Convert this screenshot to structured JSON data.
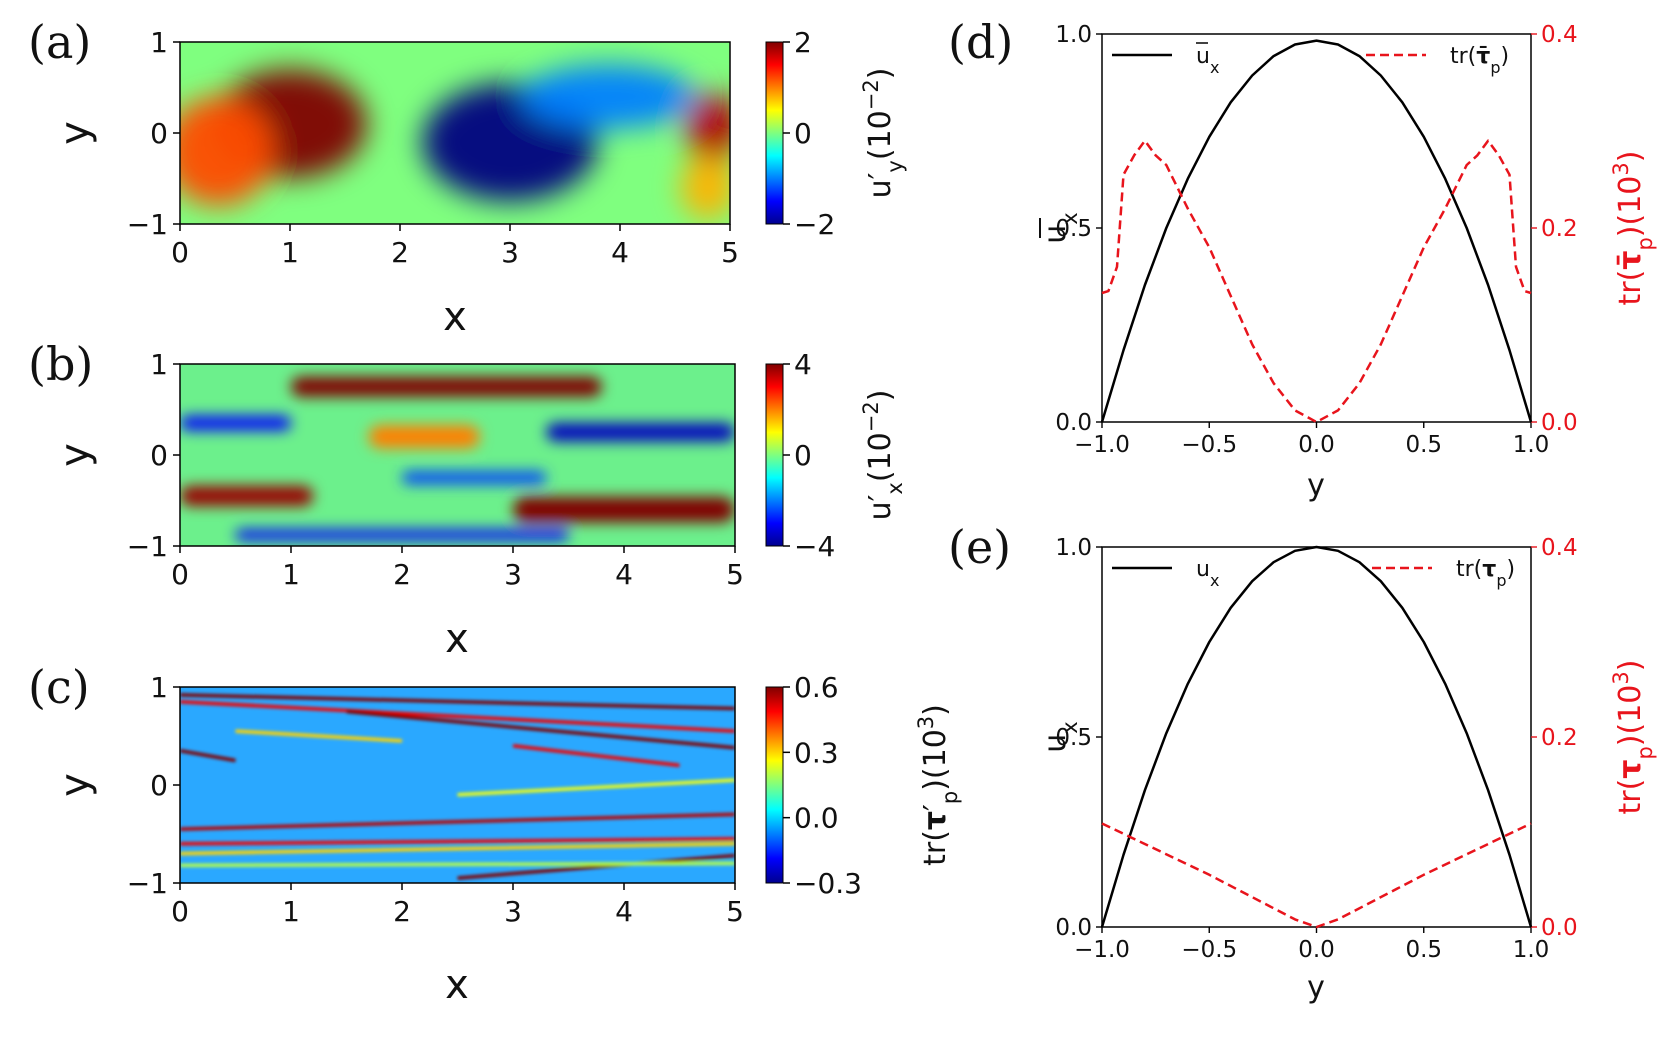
{
  "chart_data": [
    {
      "panel": "(a)",
      "type": "heatmap",
      "xlabel": "x",
      "ylabel": "y",
      "xlim": [
        0,
        5
      ],
      "ylim": [
        -1,
        1
      ],
      "xticks": [
        "0",
        "1",
        "2",
        "3",
        "4",
        "5"
      ],
      "yticks": [
        "1",
        "0",
        "−1"
      ],
      "colorbar": {
        "label": "u′_y(10⁻²)",
        "min": -2,
        "max": 2,
        "ticks": [
          "2",
          "0",
          "−2"
        ]
      },
      "blobs": [
        {
          "x": 1.0,
          "y": 0.1,
          "value": 2.0,
          "rx": 0.7,
          "ry": 0.6
        },
        {
          "x": 0.35,
          "y": -0.2,
          "value": 1.2,
          "rx": 0.5,
          "ry": 0.6
        },
        {
          "x": 3.0,
          "y": -0.1,
          "value": -2.0,
          "rx": 0.8,
          "ry": 0.65
        },
        {
          "x": 3.9,
          "y": 0.4,
          "value": -1.0,
          "rx": 0.8,
          "ry": 0.35
        },
        {
          "x": 4.85,
          "y": 0.05,
          "value": 1.8,
          "rx": 0.25,
          "ry": 0.4
        },
        {
          "x": 4.8,
          "y": -0.6,
          "value": 0.8,
          "rx": 0.25,
          "ry": 0.35
        }
      ]
    },
    {
      "panel": "(b)",
      "type": "heatmap",
      "xlabel": "x",
      "ylabel": "y",
      "xlim": [
        0,
        5
      ],
      "ylim": [
        -1,
        1
      ],
      "xticks": [
        "0",
        "1",
        "2",
        "3",
        "4",
        "5"
      ],
      "yticks": [
        "1",
        "0",
        "−1"
      ],
      "colorbar": {
        "label": "u′_x(10⁻²)",
        "min": -4,
        "max": 4,
        "ticks": [
          "4",
          "0",
          "−4"
        ]
      },
      "streaks": [
        {
          "x0": 1.0,
          "x1": 3.8,
          "y": 0.75,
          "value": 4.0,
          "h": 0.22
        },
        {
          "x0": 0.0,
          "x1": 1.2,
          "y": -0.45,
          "value": 3.8,
          "h": 0.22
        },
        {
          "x0": 3.0,
          "x1": 5.0,
          "y": -0.6,
          "value": 4.0,
          "h": 0.28
        },
        {
          "x0": 0.0,
          "x1": 1.0,
          "y": 0.35,
          "value": -3.0,
          "h": 0.16
        },
        {
          "x0": 3.3,
          "x1": 5.0,
          "y": 0.25,
          "value": -3.5,
          "h": 0.2
        },
        {
          "x0": 0.5,
          "x1": 3.5,
          "y": -0.88,
          "value": -3.0,
          "h": 0.12
        },
        {
          "x0": 2.0,
          "x1": 3.3,
          "y": -0.25,
          "value": -2.5,
          "h": 0.14
        },
        {
          "x0": 1.7,
          "x1": 2.7,
          "y": 0.2,
          "value": 2.0,
          "h": 0.25
        }
      ]
    },
    {
      "panel": "(c)",
      "type": "heatmap",
      "xlabel": "x",
      "ylabel": "y",
      "xlim": [
        0,
        5
      ],
      "ylim": [
        -1,
        1
      ],
      "xticks": [
        "0",
        "1",
        "2",
        "3",
        "4",
        "5"
      ],
      "yticks": [
        "1",
        "0",
        "−1"
      ],
      "colorbar": {
        "label": "tr(τ′_p)(10³)",
        "min": -0.3,
        "max": 0.6,
        "ticks": [
          "0.6",
          "0.3",
          "0.0",
          "−0.3"
        ]
      },
      "filaments": [
        {
          "x0": 0.0,
          "x1": 5.0,
          "y0": 0.92,
          "y1": 0.78,
          "value": 0.6
        },
        {
          "x0": 0.0,
          "x1": 5.0,
          "y0": 0.85,
          "y1": 0.55,
          "value": 0.5
        },
        {
          "x0": 1.5,
          "x1": 5.0,
          "y0": 0.75,
          "y1": 0.38,
          "value": 0.6
        },
        {
          "x0": 0.0,
          "x1": 0.5,
          "y0": 0.35,
          "y1": 0.25,
          "value": 0.6
        },
        {
          "x0": 0.5,
          "x1": 2.0,
          "y0": 0.55,
          "y1": 0.45,
          "value": 0.3
        },
        {
          "x0": 3.0,
          "x1": 4.5,
          "y0": 0.4,
          "y1": 0.2,
          "value": 0.5
        },
        {
          "x0": 2.5,
          "x1": 5.0,
          "y0": -0.1,
          "y1": 0.05,
          "value": 0.25
        },
        {
          "x0": 0.0,
          "x1": 5.0,
          "y0": -0.45,
          "y1": -0.3,
          "value": 0.55
        },
        {
          "x0": 0.0,
          "x1": 5.0,
          "y0": -0.6,
          "y1": -0.55,
          "value": 0.5
        },
        {
          "x0": 0.0,
          "x1": 5.0,
          "y0": -0.7,
          "y1": -0.6,
          "value": 0.3
        },
        {
          "x0": 2.5,
          "x1": 5.0,
          "y0": -0.95,
          "y1": -0.72,
          "value": 0.6
        },
        {
          "x0": 0.0,
          "x1": 5.0,
          "y0": -0.82,
          "y1": -0.8,
          "value": 0.2
        }
      ]
    },
    {
      "panel": "(d)",
      "type": "line",
      "xlabel": "y",
      "ylabel": "ū_x",
      "y2label": "tr(τ̄_p)(10³)",
      "xlim": [
        -1,
        1
      ],
      "ylim": [
        0,
        1
      ],
      "y2lim": [
        0,
        0.4
      ],
      "xticks": [
        "−1.0",
        "−0.5",
        "0.0",
        "0.5",
        "1.0"
      ],
      "yticks": [
        "0.0",
        "0.5",
        "1.0"
      ],
      "y2ticks": [
        "0.0",
        "0.2",
        "0.4"
      ],
      "legend": [
        "ū_x",
        "tr(τ̄_p)"
      ],
      "series": [
        {
          "name": "ū_x",
          "axis": "left",
          "color": "#000000",
          "style": "solid",
          "x": [
            -1.0,
            -0.9,
            -0.8,
            -0.7,
            -0.6,
            -0.5,
            -0.4,
            -0.3,
            -0.2,
            -0.1,
            0.0,
            0.1,
            0.2,
            0.3,
            0.4,
            0.5,
            0.6,
            0.7,
            0.8,
            0.9,
            1.0
          ],
          "y": [
            0.0,
            0.185,
            0.353,
            0.5,
            0.627,
            0.735,
            0.824,
            0.893,
            0.943,
            0.973,
            0.983,
            0.973,
            0.943,
            0.893,
            0.824,
            0.735,
            0.627,
            0.5,
            0.353,
            0.185,
            0.0
          ]
        },
        {
          "name": "tr(τ̄_p)",
          "axis": "right",
          "color": "#e8141c",
          "style": "dashed",
          "x": [
            -1.0,
            -0.97,
            -0.93,
            -0.9,
            -0.85,
            -0.8,
            -0.75,
            -0.7,
            -0.6,
            -0.5,
            -0.4,
            -0.3,
            -0.2,
            -0.1,
            0.0,
            0.1,
            0.2,
            0.3,
            0.4,
            0.5,
            0.6,
            0.7,
            0.75,
            0.8,
            0.85,
            0.9,
            0.93,
            0.97,
            1.0
          ],
          "y": [
            0.133,
            0.135,
            0.16,
            0.255,
            0.275,
            0.29,
            0.275,
            0.265,
            0.22,
            0.18,
            0.13,
            0.08,
            0.04,
            0.012,
            0.0,
            0.012,
            0.04,
            0.08,
            0.13,
            0.18,
            0.22,
            0.265,
            0.275,
            0.29,
            0.275,
            0.255,
            0.16,
            0.135,
            0.133
          ]
        }
      ]
    },
    {
      "panel": "(e)",
      "type": "line",
      "xlabel": "y",
      "ylabel": "u_x",
      "y2label": "tr(τ_p)(10³)",
      "xlim": [
        -1,
        1
      ],
      "ylim": [
        0,
        1
      ],
      "y2lim": [
        0,
        0.4
      ],
      "xticks": [
        "−1.0",
        "−0.5",
        "0.0",
        "0.5",
        "1.0"
      ],
      "yticks": [
        "0.0",
        "0.5",
        "1.0"
      ],
      "y2ticks": [
        "0.0",
        "0.2",
        "0.4"
      ],
      "legend": [
        "u_x",
        "tr(τ_p)"
      ],
      "series": [
        {
          "name": "u_x",
          "axis": "left",
          "color": "#000000",
          "style": "solid",
          "x": [
            -1.0,
            -0.9,
            -0.8,
            -0.7,
            -0.6,
            -0.5,
            -0.4,
            -0.3,
            -0.2,
            -0.1,
            0.0,
            0.1,
            0.2,
            0.3,
            0.4,
            0.5,
            0.6,
            0.7,
            0.8,
            0.9,
            1.0
          ],
          "y": [
            0.0,
            0.19,
            0.36,
            0.51,
            0.64,
            0.75,
            0.84,
            0.91,
            0.96,
            0.99,
            1.0,
            0.99,
            0.96,
            0.91,
            0.84,
            0.75,
            0.64,
            0.51,
            0.36,
            0.19,
            0.0
          ]
        },
        {
          "name": "tr(τ_p)",
          "axis": "right",
          "color": "#e8141c",
          "style": "dashed",
          "x": [
            -1.0,
            -0.5,
            -0.1,
            0.0,
            0.1,
            0.5,
            1.0
          ],
          "y": [
            0.109,
            0.055,
            0.008,
            0.0,
            0.008,
            0.055,
            0.109
          ]
        }
      ]
    }
  ]
}
